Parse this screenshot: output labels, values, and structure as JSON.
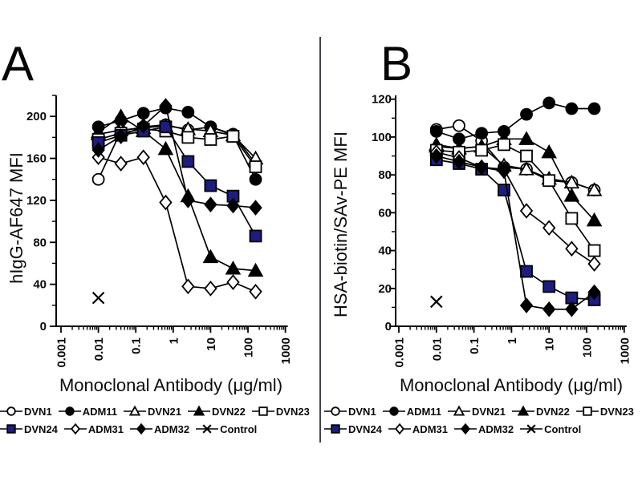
{
  "figure": {
    "background": "#ffffff",
    "divider_color": "#42424a",
    "line_color": "#000000",
    "legend_rows": [
      [
        "DVN1",
        "ADM11",
        "DVN21",
        "DVN22",
        "DVN23"
      ],
      [
        "DVN24",
        "ADM31",
        "ADM32",
        "Control"
      ]
    ]
  },
  "chart_data": [
    {
      "type": "line",
      "panel_label": "A",
      "xlabel": "Monoclonal Antibody (μg/ml)",
      "ylabel": "hIgG-AF647 MFI",
      "x_scale": "log",
      "xlim": [
        0.001,
        1000
      ],
      "x_tick_labels": [
        "0.001",
        "0.01",
        "0.1",
        "1",
        "10",
        "100",
        "1000"
      ],
      "ylim": [
        0,
        220
      ],
      "yticks": [
        0,
        40,
        80,
        120,
        160,
        200
      ],
      "y_minor_step": 20,
      "grid": false,
      "legend_position": "below",
      "x": [
        0.01,
        0.04,
        0.16,
        0.63,
        2.5,
        10,
        40,
        160
      ],
      "series": [
        {
          "name": "DVN1",
          "marker": "circle",
          "fill": "open",
          "color": "#000000",
          "values": [
            140,
            186,
            190,
            192,
            187,
            190,
            183,
            155
          ]
        },
        {
          "name": "ADM11",
          "marker": "circle",
          "fill": "solid",
          "color": "#000000",
          "values": [
            190,
            196,
            203,
            208,
            204,
            190,
            182,
            140
          ]
        },
        {
          "name": "DVN21",
          "marker": "triangle",
          "fill": "open",
          "color": "#000000",
          "values": [
            183,
            187,
            189,
            191,
            188,
            186,
            182,
            160
          ]
        },
        {
          "name": "DVN22",
          "marker": "triangle",
          "fill": "solid",
          "color": "#000000",
          "values": [
            185,
            200,
            186,
            169,
            124,
            66,
            55,
            53
          ]
        },
        {
          "name": "DVN23",
          "marker": "square",
          "fill": "open",
          "color": "#000000",
          "values": [
            178,
            184,
            188,
            186,
            180,
            178,
            181,
            152
          ]
        },
        {
          "name": "DVN24",
          "marker": "square",
          "fill": "solid",
          "color": "#1d1d80",
          "values": [
            175,
            182,
            186,
            190,
            157,
            134,
            124,
            86
          ]
        },
        {
          "name": "ADM31",
          "marker": "diamond",
          "fill": "open",
          "color": "#000000",
          "values": [
            161,
            155,
            161,
            118,
            38,
            36,
            42,
            33
          ]
        },
        {
          "name": "ADM32",
          "marker": "diamond",
          "fill": "solid",
          "color": "#000000",
          "values": [
            168,
            181,
            191,
            210,
            120,
            116,
            115,
            113
          ]
        },
        {
          "name": "Control",
          "marker": "x",
          "fill": "none",
          "color": "#000000",
          "x": [
            0.01
          ],
          "values": [
            27
          ]
        }
      ]
    },
    {
      "type": "line",
      "panel_label": "B",
      "xlabel": "Monoclonal Antibody (μg/ml)",
      "ylabel": "HSA-biotin/SAv-PE MFI",
      "x_scale": "log",
      "xlim": [
        0.001,
        1000
      ],
      "x_tick_labels": [
        "0.001",
        "0.01",
        "0.1",
        "1",
        "10",
        "100",
        "1000"
      ],
      "ylim": [
        0,
        122
      ],
      "yticks": [
        0,
        20,
        40,
        60,
        80,
        100,
        120
      ],
      "y_minor_step": 10,
      "grid": false,
      "legend_position": "below",
      "x": [
        0.01,
        0.04,
        0.16,
        0.63,
        2.5,
        10,
        40,
        160
      ],
      "series": [
        {
          "name": "DVN1",
          "marker": "circle",
          "fill": "open",
          "color": "#000000",
          "values": [
            104,
            106,
            98,
            84,
            83,
            77,
            76,
            72
          ]
        },
        {
          "name": "ADM11",
          "marker": "circle",
          "fill": "solid",
          "color": "#000000",
          "values": [
            103,
            99,
            102,
            103,
            112,
            118,
            115,
            115
          ]
        },
        {
          "name": "DVN21",
          "marker": "triangle",
          "fill": "open",
          "color": "#000000",
          "values": [
            95,
            94,
            95,
            85,
            83,
            78,
            76,
            72
          ]
        },
        {
          "name": "DVN22",
          "marker": "triangle",
          "fill": "solid",
          "color": "#000000",
          "values": [
            96,
            94,
            95,
            99,
            99,
            92,
            69,
            56
          ]
        },
        {
          "name": "DVN23",
          "marker": "square",
          "fill": "open",
          "color": "#000000",
          "values": [
            93,
            92,
            93,
            96,
            90,
            77,
            57,
            40
          ]
        },
        {
          "name": "DVN24",
          "marker": "square",
          "fill": "solid",
          "color": "#1d1d80",
          "values": [
            88,
            86,
            83,
            72,
            29,
            21,
            15,
            14
          ]
        },
        {
          "name": "ADM31",
          "marker": "diamond",
          "fill": "open",
          "color": "#000000",
          "values": [
            92,
            89,
            84,
            83,
            61,
            52,
            41,
            33
          ]
        },
        {
          "name": "ADM32",
          "marker": "diamond",
          "fill": "solid",
          "color": "#000000",
          "values": [
            90,
            87,
            84,
            82,
            11,
            9,
            9,
            18
          ]
        },
        {
          "name": "Control",
          "marker": "x",
          "fill": "none",
          "color": "#000000",
          "x": [
            0.01
          ],
          "values": [
            13
          ]
        }
      ]
    }
  ]
}
